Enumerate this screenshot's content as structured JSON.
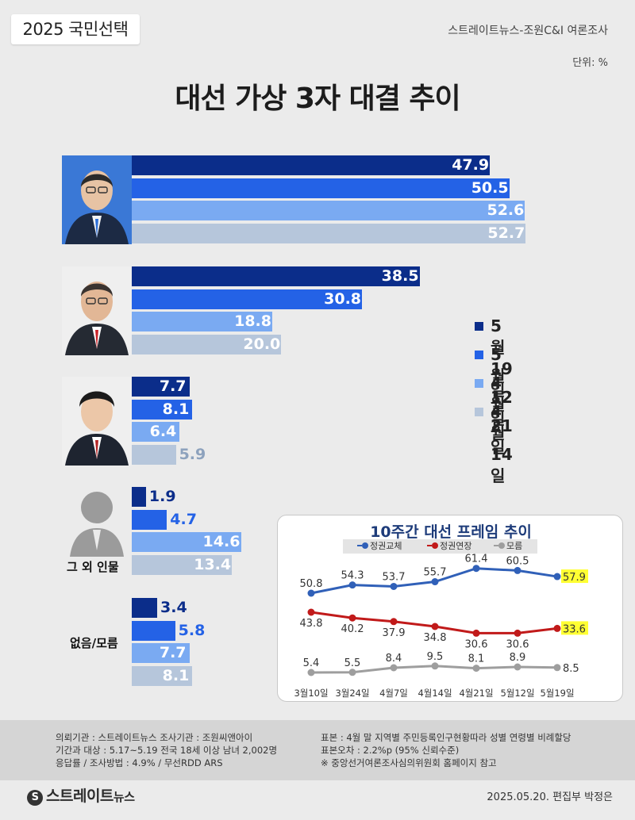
{
  "header": {
    "tag": "2025 국민선택",
    "source": "스트레이트뉴스-조원C&I 여론조사",
    "unit": "단위: %",
    "title": "대선 가상 3자 대결 추이"
  },
  "colors": {
    "d519": "#0b2d8a",
    "d512": "#2462e6",
    "d421": "#7aaaf2",
    "d414": "#b6c6db",
    "series_gov_change": "#3060b8",
    "series_gov_continue": "#c11a1a",
    "series_unknown": "#9e9e9e",
    "highlight": "#ffff33"
  },
  "legend": [
    "5월19일",
    "5월12일",
    "4월21일",
    "4월14일"
  ],
  "candidates": [
    {
      "id": "cand1",
      "label": "",
      "icon": "candidate-1-photo"
    },
    {
      "id": "cand2",
      "label": "",
      "icon": "candidate-2-photo"
    },
    {
      "id": "cand3",
      "label": "",
      "icon": "candidate-3-photo"
    },
    {
      "id": "others",
      "label": "그 외 인물",
      "icon": "person-silhouette-icon"
    },
    {
      "id": "none",
      "label": "없음/모름",
      "icon": ""
    }
  ],
  "chart_data": [
    {
      "type": "bar",
      "orientation": "horizontal",
      "categories": [
        "",
        "",
        "",
        "그 외 인물",
        "없음/모름"
      ],
      "series": [
        {
          "name": "5월19일",
          "values": [
            47.9,
            38.5,
            7.7,
            1.9,
            3.4
          ]
        },
        {
          "name": "5월12일",
          "values": [
            50.5,
            30.8,
            8.1,
            4.7,
            5.8
          ]
        },
        {
          "name": "4월21일",
          "values": [
            52.6,
            18.8,
            6.4,
            14.6,
            7.7
          ]
        },
        {
          "name": "4월14일",
          "values": [
            52.7,
            20.0,
            5.9,
            13.4,
            8.1
          ]
        }
      ],
      "unit": "%",
      "xlim": [
        0,
        60
      ]
    },
    {
      "type": "line",
      "title": "10주간 대선 프레임 추이",
      "x": [
        "3월10일",
        "3월24일",
        "4월7일",
        "4월14일",
        "4월21일",
        "5월12일",
        "5월19일"
      ],
      "series": [
        {
          "name": "정권교체",
          "values": [
            50.8,
            54.3,
            53.7,
            55.7,
            61.4,
            60.5,
            57.9
          ]
        },
        {
          "name": "정권연장",
          "values": [
            43.8,
            40.2,
            37.9,
            34.8,
            30.6,
            30.6,
            33.6
          ]
        },
        {
          "name": "모름",
          "values": [
            5.4,
            5.5,
            8.4,
            9.5,
            8.1,
            8.9,
            8.5
          ]
        }
      ],
      "highlight_last": true
    }
  ],
  "footer": {
    "left": [
      "의뢰기관 : 스트레이트뉴스  조사기관 : 조원씨앤아이",
      "기간과 대상 : 5.17~5.19  전국 18세 이상 남녀 2,002명",
      "응답률 / 조사방법 : 4.9% / 무선RDD ARS"
    ],
    "right": [
      "표본 : 4월 말 지역별 주민등록인구현황따라 성별 연령별 비례할당",
      "표본오차 : 2.2%p (95% 신뢰수준)",
      "※ 중앙선거여론조사심의위원회 홈페이지 참고"
    ],
    "brand": "스트레이트",
    "brand_sub": "뉴스",
    "brand_mark": "S",
    "credit": "2025.05.20. 편집부 박정은"
  }
}
